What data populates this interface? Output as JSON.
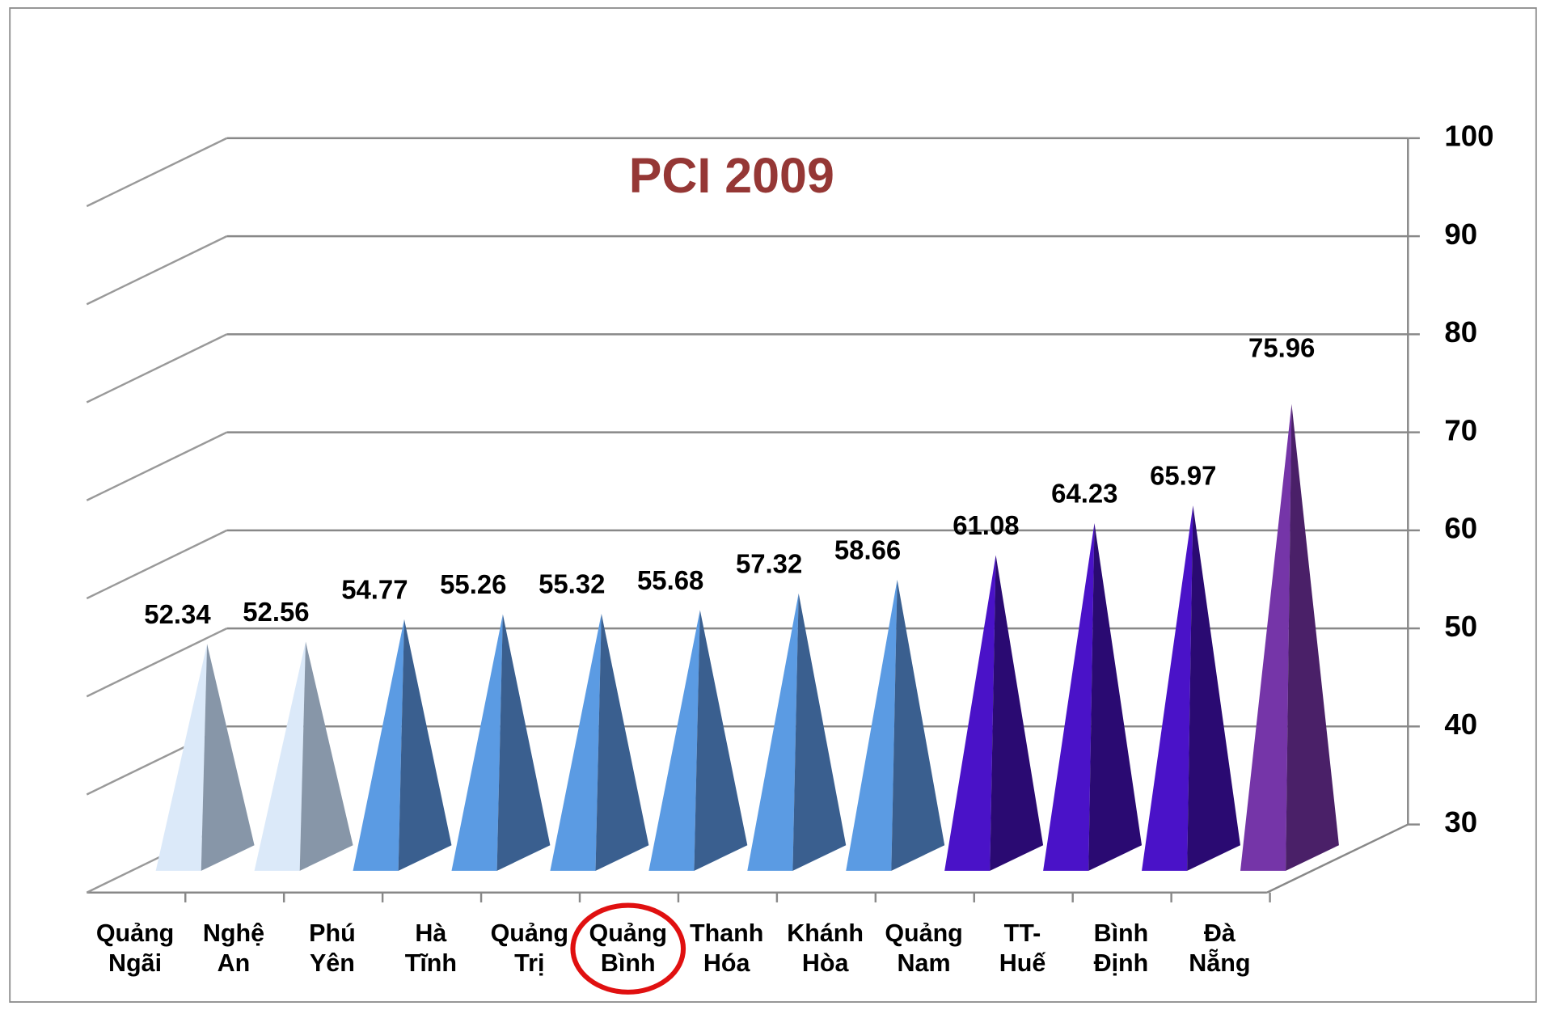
{
  "chart_data": {
    "type": "pyramid",
    "title": "PCI 2009",
    "title_color": "#953735",
    "categories": [
      [
        "Quảng",
        "Ngãi"
      ],
      [
        "Nghệ",
        "An"
      ],
      [
        "Phú",
        "Yên"
      ],
      [
        "Hà",
        "Tĩnh"
      ],
      [
        "Quảng",
        "Trị"
      ],
      [
        "Quảng",
        "Bình"
      ],
      [
        "Thanh",
        "Hóa"
      ],
      [
        "Khánh",
        "Hòa"
      ],
      [
        "Quảng",
        "Nam"
      ],
      [
        "TT-",
        "Huế"
      ],
      [
        "Bình",
        "Định"
      ],
      [
        "Đà",
        "Nẵng"
      ]
    ],
    "values": [
      52.34,
      52.56,
      54.77,
      55.26,
      55.32,
      55.68,
      57.32,
      58.66,
      61.08,
      64.23,
      65.97,
      75.96
    ],
    "colors": [
      "#dbe9f9",
      "#dbe9f9",
      "#5b9be3",
      "#5b9be3",
      "#5b9be3",
      "#5b9be3",
      "#5b9be3",
      "#5b9be3",
      "#4a12c8",
      "#4a12c8",
      "#4a12c8",
      "#7535a8"
    ],
    "shade_colors": [
      "#8796a8",
      "#8796a8",
      "#3a5f8f",
      "#3a5f8f",
      "#3a5f8f",
      "#3a5f8f",
      "#3a5f8f",
      "#3a5f8f",
      "#2a0a72",
      "#2a0a72",
      "#2a0a72",
      "#4a2068"
    ],
    "ylim": [
      30,
      100
    ],
    "yticks": [
      30,
      40,
      50,
      60,
      70,
      80,
      90,
      100
    ],
    "grid": true
  }
}
